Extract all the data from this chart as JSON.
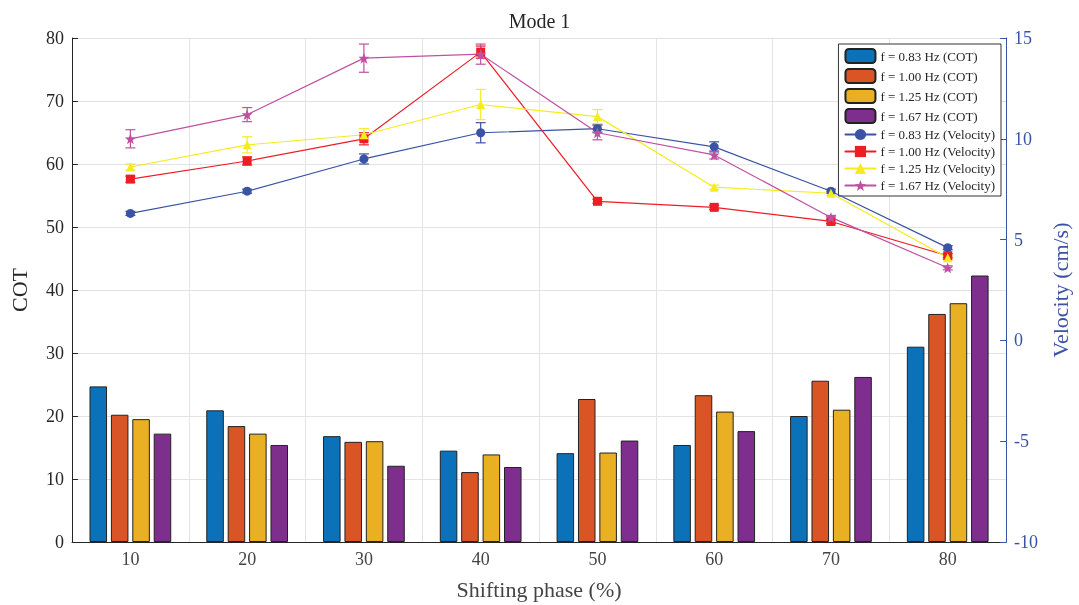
{
  "chart_data": {
    "type": "bar",
    "title": "Mode 1",
    "xlabel": "Shifting phase (%)",
    "ylabel": "COT",
    "y2label": "Velocity (cm/s)",
    "categories": [
      "10",
      "20",
      "30",
      "40",
      "50",
      "60",
      "70",
      "80"
    ],
    "series": [
      {
        "name": "f = 0.83 Hz (COT)",
        "color": "#0b72b9",
        "values": [
          24.7,
          20.9,
          16.8,
          14.5,
          14.1,
          15.4,
          20.0,
          31.0
        ]
      },
      {
        "name": "f = 1.00 Hz (COT)",
        "color": "#d95525",
        "values": [
          20.2,
          18.4,
          15.9,
          11.1,
          22.7,
          23.3,
          25.6,
          36.2
        ]
      },
      {
        "name": "f = 1.25 Hz (COT)",
        "color": "#eab023",
        "values": [
          19.5,
          17.2,
          16.0,
          13.9,
          14.2,
          20.7,
          21.0,
          37.9
        ]
      },
      {
        "name": "f = 1.67 Hz (COT)",
        "color": "#7e2f8e",
        "values": [
          17.2,
          15.4,
          12.1,
          11.9,
          16.1,
          17.6,
          26.2,
          42.3
        ]
      },
      {
        "name": "f = 0.83 Hz (Velocity)",
        "type": "line",
        "axis": "y2",
        "marker": "circle",
        "color": "#3a53a4",
        "values": [
          6.3,
          7.4,
          9.0,
          10.3,
          10.5,
          9.6,
          7.4,
          4.6
        ],
        "errors": [
          0.1,
          0.1,
          0.25,
          0.5,
          0.2,
          0.25,
          0.1,
          0.1
        ]
      },
      {
        "name": "f = 1.00 Hz (Velocity)",
        "type": "line",
        "axis": "y2",
        "marker": "square",
        "color": "#ee1c25",
        "values": [
          8.0,
          8.9,
          10.0,
          14.3,
          6.9,
          6.6,
          5.9,
          4.2
        ],
        "errors": [
          0.15,
          0.2,
          0.3,
          0.3,
          0.1,
          0.1,
          0.1,
          0.1
        ]
      },
      {
        "name": "f = 1.25 Hz (Velocity)",
        "type": "line",
        "axis": "y2",
        "marker": "triangle",
        "color": "#f5ec1f",
        "values": [
          8.6,
          9.7,
          10.2,
          11.7,
          11.1,
          7.6,
          7.3,
          4.1
        ],
        "errors": [
          0.15,
          0.4,
          0.3,
          0.75,
          0.35,
          0.1,
          0.1,
          0.1
        ]
      },
      {
        "name": "f = 1.67 Hz (Velocity)",
        "type": "line",
        "axis": "y2",
        "marker": "star",
        "color": "#c051a0",
        "values": [
          10.0,
          11.2,
          14.0,
          14.2,
          10.3,
          9.2,
          6.1,
          3.6
        ],
        "errors": [
          0.45,
          0.35,
          0.7,
          0.5,
          0.35,
          0.2,
          0.1,
          0.1
        ]
      }
    ],
    "ylim": [
      0,
      80
    ],
    "yticks": [
      0,
      10,
      20,
      30,
      40,
      50,
      60,
      70,
      80
    ],
    "y2lim": [
      -10,
      15
    ],
    "y2ticks": [
      -10,
      -5,
      0,
      5,
      10,
      15
    ],
    "grid": true,
    "legend": "top right",
    "line_style": "solid"
  }
}
